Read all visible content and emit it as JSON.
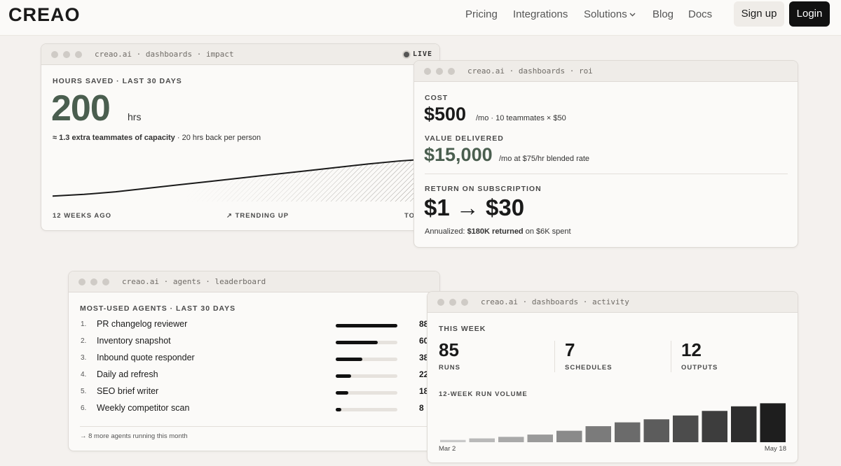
{
  "nav": {
    "logo": "CREAO",
    "links": [
      "Pricing",
      "Integrations",
      "Solutions",
      "Blog",
      "Docs"
    ],
    "signup": "Sign up",
    "login": "Login"
  },
  "impact": {
    "window": "creao.ai · dashboards · impact",
    "live": "LIVE",
    "label": "HOURS SAVED · LAST 30 DAYS",
    "value": "200",
    "unit": "hrs",
    "note_strong": "≈ 1.3 extra teammates of capacity",
    "note": "· 20 hrs back per person",
    "trend": {
      "values": [
        6,
        10,
        16,
        24,
        32,
        40,
        48,
        56,
        64,
        72,
        80,
        87,
        92
      ],
      "ylim": [
        0,
        100
      ]
    },
    "start": "12 WEEKS AGO",
    "middle": "TRENDING UP",
    "end": "TODAY"
  },
  "roi": {
    "window": "creao.ai · dashboards · roi",
    "cost_label": "COST",
    "cost": "$500",
    "cost_note": "/mo · 10 teammates × $50",
    "value_label": "VALUE DELIVERED",
    "value": "$15,000",
    "value_note": "/mo at $75/hr blended rate",
    "return_label": "RETURN ON SUBSCRIPTION",
    "return": "$1 → $30",
    "annual_prefix": "Annualized:",
    "annual_strong": "$180K returned",
    "annual_suffix": "on $6K spent"
  },
  "leaderboard": {
    "window": "creao.ai · agents · leaderboard",
    "label": "MOST-USED AGENTS · LAST 30 DAYS",
    "rows": [
      {
        "rank": "1.",
        "name": "PR changelog reviewer",
        "value": 88
      },
      {
        "rank": "2.",
        "name": "Inventory snapshot",
        "value": 60
      },
      {
        "rank": "3.",
        "name": "Inbound quote responder",
        "value": 38
      },
      {
        "rank": "4.",
        "name": "Daily ad refresh",
        "value": 22
      },
      {
        "rank": "5.",
        "name": "SEO brief writer",
        "value": 18
      },
      {
        "rank": "6.",
        "name": "Weekly competitor scan",
        "value": 8
      }
    ],
    "footer": "→ 8 more agents running this month"
  },
  "activity": {
    "window": "creao.ai · dashboards · activity",
    "label": "THIS WEEK",
    "stats": [
      {
        "value": "85",
        "label": "RUNS"
      },
      {
        "value": "7",
        "label": "SCHEDULES"
      },
      {
        "value": "12",
        "label": "OUTPUTS"
      }
    ],
    "chart_label": "12-WEEK RUN VOLUME",
    "volume": [
      3,
      5,
      7,
      10,
      15,
      21,
      26,
      30,
      35,
      41,
      47,
      51
    ],
    "start": "Mar 2",
    "end": "May 18"
  }
}
